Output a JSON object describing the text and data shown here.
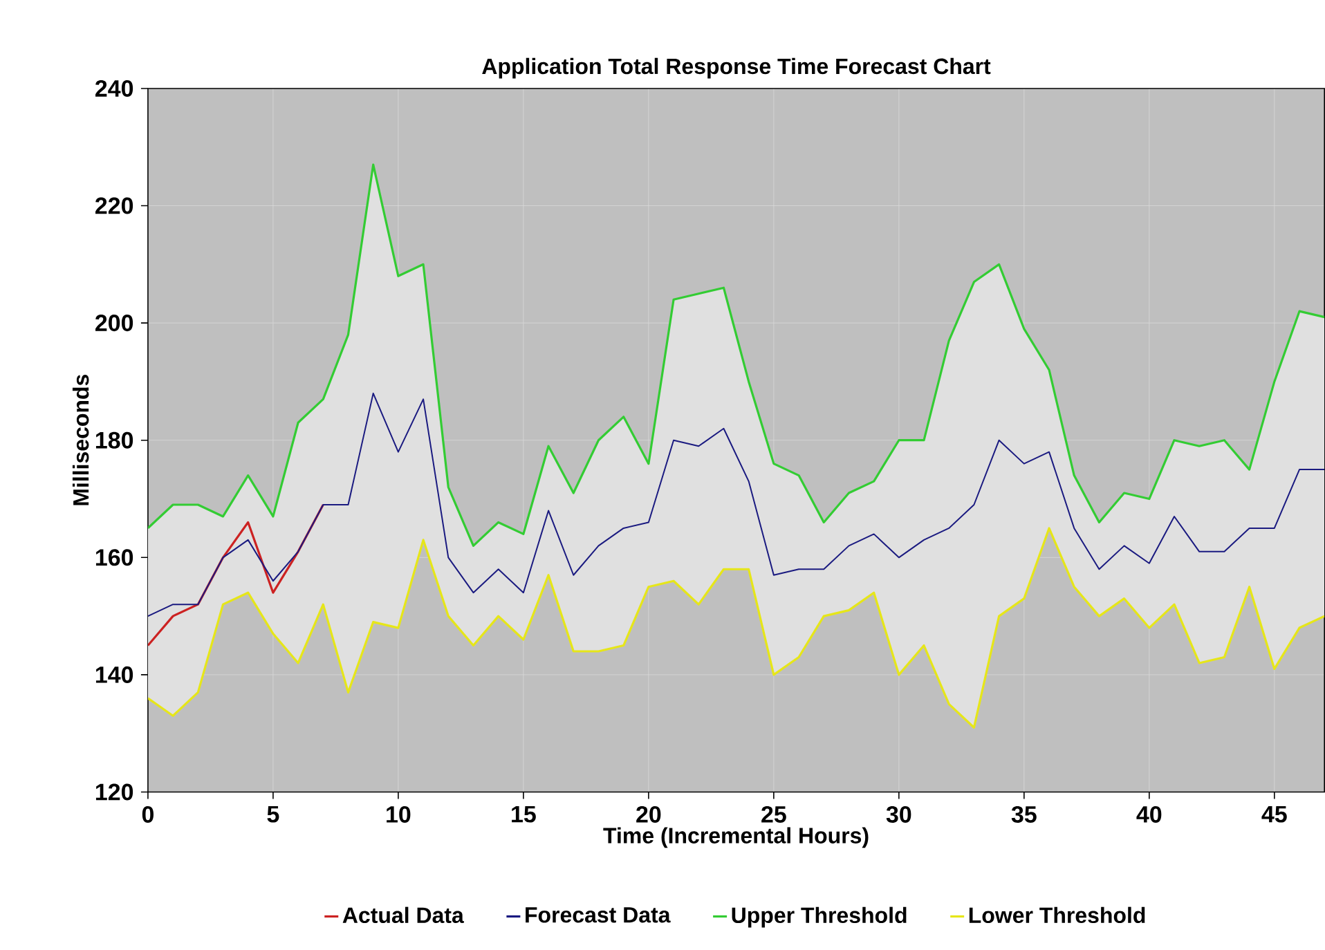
{
  "chart_data": {
    "type": "line",
    "title": "Application Total Response Time Forecast Chart",
    "xlabel": "Time (Incremental Hours)",
    "ylabel": "Milliseconds",
    "x": [
      0,
      1,
      2,
      3,
      4,
      5,
      6,
      7,
      8,
      9,
      10,
      11,
      12,
      13,
      14,
      15,
      16,
      17,
      18,
      19,
      20,
      21,
      22,
      23,
      24,
      25,
      26,
      27,
      28,
      29,
      30,
      31,
      32,
      33,
      34,
      35,
      36,
      37,
      38,
      39,
      40,
      41,
      42,
      43,
      44,
      45,
      46,
      47
    ],
    "series": [
      {
        "name": "Actual Data",
        "color": "#cc2222",
        "x": [
          0,
          1,
          2,
          3,
          4,
          5,
          6,
          7
        ],
        "values": [
          145,
          150,
          152,
          160,
          166,
          154,
          161,
          169
        ]
      },
      {
        "name": "Forecast Data",
        "color": "#1a1a80",
        "values": [
          150,
          152,
          152,
          160,
          163,
          156,
          161,
          169,
          169,
          188,
          178,
          187,
          160,
          154,
          158,
          154,
          168,
          157,
          162,
          165,
          166,
          180,
          179,
          182,
          173,
          157,
          158,
          158,
          162,
          164,
          160,
          163,
          165,
          169,
          180,
          176,
          178,
          165,
          158,
          162,
          159,
          167,
          161,
          161,
          165,
          165,
          175,
          175
        ],
        "upper": [
          165,
          169,
          169,
          167,
          174,
          167,
          183,
          187,
          198,
          227,
          208,
          210,
          172,
          162,
          166,
          164,
          179,
          171,
          180,
          184,
          176,
          204,
          205,
          206,
          190,
          176,
          174,
          166,
          171,
          173,
          180,
          180,
          197,
          207,
          210,
          199,
          192,
          174,
          166,
          171,
          170,
          180,
          179,
          180,
          175,
          190,
          202,
          201
        ],
        "lower": [
          136,
          133,
          137,
          152,
          154,
          147,
          142,
          152,
          137,
          149,
          148,
          163,
          150,
          145,
          150,
          146,
          157,
          144,
          144,
          145,
          155,
          156,
          152,
          158,
          158,
          140,
          143,
          150,
          151,
          154,
          140,
          145,
          135,
          131,
          150,
          153,
          165,
          155,
          150,
          153,
          148,
          152,
          142,
          143,
          155,
          141,
          148,
          150
        ]
      },
      {
        "name": "Upper Threshold",
        "color": "#33cc33",
        "values": [
          165,
          169,
          169,
          167,
          174,
          167,
          183,
          187,
          198,
          227,
          208,
          210,
          172,
          162,
          166,
          164,
          179,
          171,
          180,
          184,
          176,
          204,
          205,
          206,
          190,
          176,
          174,
          166,
          171,
          173,
          180,
          180,
          197,
          207,
          210,
          199,
          192,
          174,
          166,
          171,
          170,
          180,
          179,
          180,
          175,
          190,
          202,
          201
        ]
      },
      {
        "name": "Lower Threshold",
        "color": "#e6e619",
        "values": [
          136,
          133,
          137,
          152,
          154,
          147,
          142,
          152,
          137,
          149,
          148,
          163,
          150,
          145,
          150,
          146,
          157,
          144,
          144,
          145,
          155,
          156,
          152,
          158,
          158,
          140,
          143,
          150,
          151,
          154,
          140,
          145,
          135,
          131,
          150,
          153,
          165,
          155,
          150,
          153,
          148,
          152,
          142,
          143,
          155,
          141,
          148,
          150
        ]
      }
    ],
    "xlim": [
      0,
      47
    ],
    "xticks": [
      0,
      5,
      10,
      15,
      20,
      25,
      30,
      35,
      40,
      45
    ],
    "ylim": [
      120,
      240
    ],
    "yticks": [
      120,
      140,
      160,
      180,
      200,
      220,
      240
    ],
    "grid": true,
    "legend": "bottom",
    "marker": "none",
    "line_style": "solid"
  }
}
